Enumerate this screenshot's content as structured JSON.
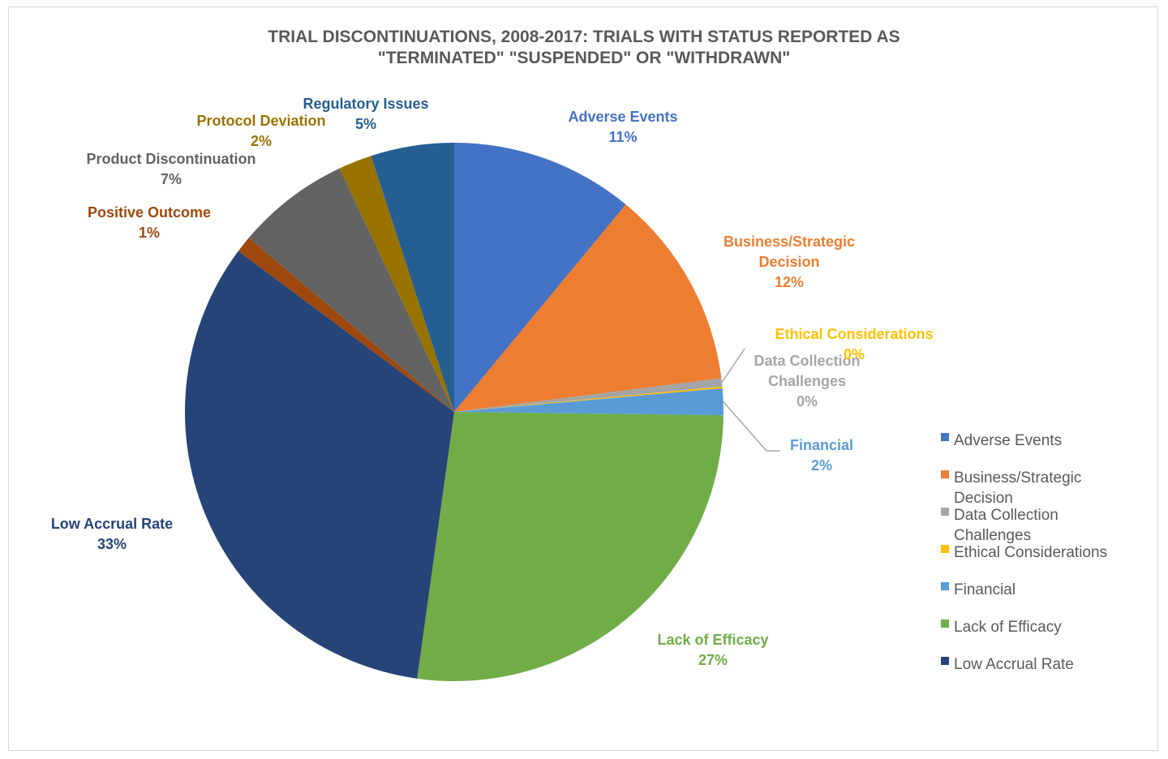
{
  "chart_data": {
    "type": "pie",
    "title_lines": [
      "TRIAL DISCONTINUATIONS, 2008-2017: TRIALS WITH STATUS REPORTED AS",
      "\"TERMINATED\" \"SUSPENDED\" OR \"WITHDRAWN\""
    ],
    "slices": [
      {
        "name": "Adverse Events",
        "value": 11,
        "percent_label": "11%",
        "color": "#4472c4",
        "label_lines": [
          "Adverse Events"
        ]
      },
      {
        "name": "Business/Strategic Decision",
        "value": 12,
        "percent_label": "12%",
        "color": "#ed7d31",
        "label_lines": [
          "Business/Strategic",
          "Decision"
        ]
      },
      {
        "name": "Data Collection Challenges",
        "value": 0.5,
        "percent_label": "0%",
        "color": "#a5a5a5",
        "label_lines": [
          "Data Collection",
          "Challenges"
        ]
      },
      {
        "name": "Ethical Considerations",
        "value": 0.1,
        "percent_label": "0%",
        "color": "#ffc000",
        "label_lines": [
          "Ethical Considerations"
        ]
      },
      {
        "name": "Financial",
        "value": 1.6,
        "percent_label": "2%",
        "color": "#5b9bd5",
        "label_lines": [
          "Financial"
        ]
      },
      {
        "name": "Lack of Efficacy",
        "value": 27,
        "percent_label": "27%",
        "color": "#70ad47",
        "label_lines": [
          "Lack of Efficacy"
        ]
      },
      {
        "name": "Low Accrual Rate",
        "value": 33,
        "percent_label": "33%",
        "color": "#264478",
        "label_lines": [
          "Low Accrual Rate"
        ]
      },
      {
        "name": "Positive Outcome",
        "value": 1,
        "percent_label": "1%",
        "color": "#9e480e",
        "label_lines": [
          "Positive Outcome"
        ]
      },
      {
        "name": "Product Discontinuation",
        "value": 6.8,
        "percent_label": "7%",
        "color": "#636363",
        "label_lines": [
          "Product Discontinuation"
        ]
      },
      {
        "name": "Protocol Deviation",
        "value": 2,
        "percent_label": "2%",
        "color": "#997300",
        "label_lines": [
          "Protocol Deviation"
        ]
      },
      {
        "name": "Regulatory Issues",
        "value": 5,
        "percent_label": "5%",
        "color": "#255e91",
        "label_lines": [
          "Regulatory Issues"
        ]
      }
    ],
    "legend": {
      "placement": "right",
      "entries": [
        {
          "label_lines": [
            "Adverse Events"
          ],
          "color": "#4472c4"
        },
        {
          "label_lines": [
            "Business/Strategic",
            "Decision"
          ],
          "color": "#ed7d31"
        },
        {
          "label_lines": [
            "Data Collection",
            "Challenges"
          ],
          "color": "#a5a5a5"
        },
        {
          "label_lines": [
            "Ethical Considerations"
          ],
          "color": "#ffc000"
        },
        {
          "label_lines": [
            "Financial"
          ],
          "color": "#5b9bd5"
        },
        {
          "label_lines": [
            "Lack of Efficacy"
          ],
          "color": "#70ad47"
        },
        {
          "label_lines": [
            "Low Accrual Rate"
          ],
          "color": "#264478"
        }
      ]
    }
  }
}
